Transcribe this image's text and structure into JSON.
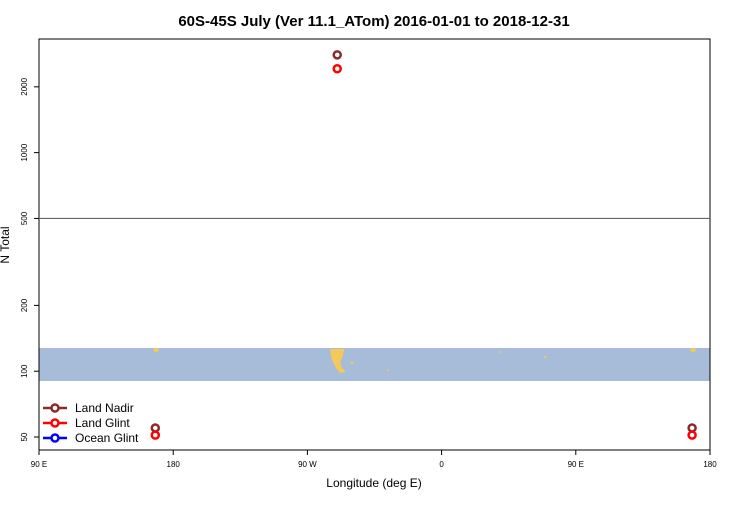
{
  "chart_data": {
    "type": "scatter",
    "title": "60S-45S July (Ver 11.1_ATom)   2016-01-01 to 2018-12-31",
    "x_label": "Longitude (deg E)",
    "y_label": "N Total",
    "xlim": [
      90,
      540
    ],
    "xticks": [
      {
        "value": 90,
        "label": "90 E"
      },
      {
        "value": 180,
        "label": "180"
      },
      {
        "value": 270,
        "label": "90 W"
      },
      {
        "value": 360,
        "label": "0"
      },
      {
        "value": 450,
        "label": "90 E"
      },
      {
        "value": 540,
        "label": "180"
      }
    ],
    "ylim": [
      43.6,
      3310
    ],
    "yticks": [
      50,
      100,
      200,
      500,
      1000,
      2000
    ],
    "log_y": true,
    "hline": 500,
    "legend": "bottom-left",
    "series": [
      {
        "name": "Land Nadir",
        "color": "#8b2a2a",
        "x": [
          290,
          168,
          528
        ],
        "values": [
          2800,
          55,
          55
        ]
      },
      {
        "name": "Land Glint",
        "color": "#ff0000",
        "x": [
          290,
          168,
          528
        ],
        "values": [
          2420,
          51,
          51
        ]
      },
      {
        "name": "Ocean Glint",
        "color": "#0000ff",
        "x": [],
        "values": []
      }
    ]
  }
}
